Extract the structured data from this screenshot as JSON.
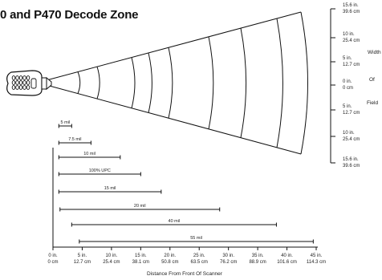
{
  "title": "0 and P470 Decode Zone",
  "field_labels": [
    {
      "in": "15.6 in.",
      "cm": "39.6 cm"
    },
    {
      "in": "10 in.",
      "cm": "25.4 cm"
    },
    {
      "in": "5 in.",
      "cm": "12.7 cm"
    },
    {
      "in": "0 in.",
      "cm": "0 cm"
    },
    {
      "in": "5 in.",
      "cm": "12.7 cm"
    },
    {
      "in": "10 in.",
      "cm": "25.4 cm"
    },
    {
      "in": "15.6 in.",
      "cm": "39.6 cm"
    }
  ],
  "side_title": [
    "Width",
    "Of",
    "Field"
  ],
  "x_ticks": [
    {
      "in": "0 in.",
      "cm": "0 cm"
    },
    {
      "in": "5 in.",
      "cm": "12.7 cm"
    },
    {
      "in": "10 in.",
      "cm": "25.4 cm"
    },
    {
      "in": "15 in.",
      "cm": "38.1 cm"
    },
    {
      "in": "20 in.",
      "cm": "50.8 cm"
    },
    {
      "in": "25 in.",
      "cm": "63.5 cm"
    },
    {
      "in": "30 in.",
      "cm": "76.2 cm"
    },
    {
      "in": "35 in.",
      "cm": "88.9 cm"
    },
    {
      "in": "40 in.",
      "cm": "101.6 cm"
    },
    {
      "in": "45 in.",
      "cm": "114.3 cm"
    }
  ],
  "x_axis_title": "Distance From Front Of Scanner",
  "ranges": [
    {
      "label": "5 mil",
      "start_in": 1,
      "end_in": 3.2
    },
    {
      "label": "7.5 mil",
      "start_in": 1,
      "end_in": 6.5
    },
    {
      "label": "10 mil",
      "start_in": 1,
      "end_in": 11.5
    },
    {
      "label": "100% UPC",
      "start_in": 1,
      "end_in": 15
    },
    {
      "label": "15 mil",
      "start_in": 1,
      "end_in": 18.5
    },
    {
      "label": "20 mil",
      "start_in": 1.2,
      "end_in": 28.5
    },
    {
      "label": "40 mil",
      "start_in": 3.2,
      "end_in": 38.2
    },
    {
      "label": "55 mil",
      "start_in": 4.5,
      "end_in": 44.5
    }
  ]
}
